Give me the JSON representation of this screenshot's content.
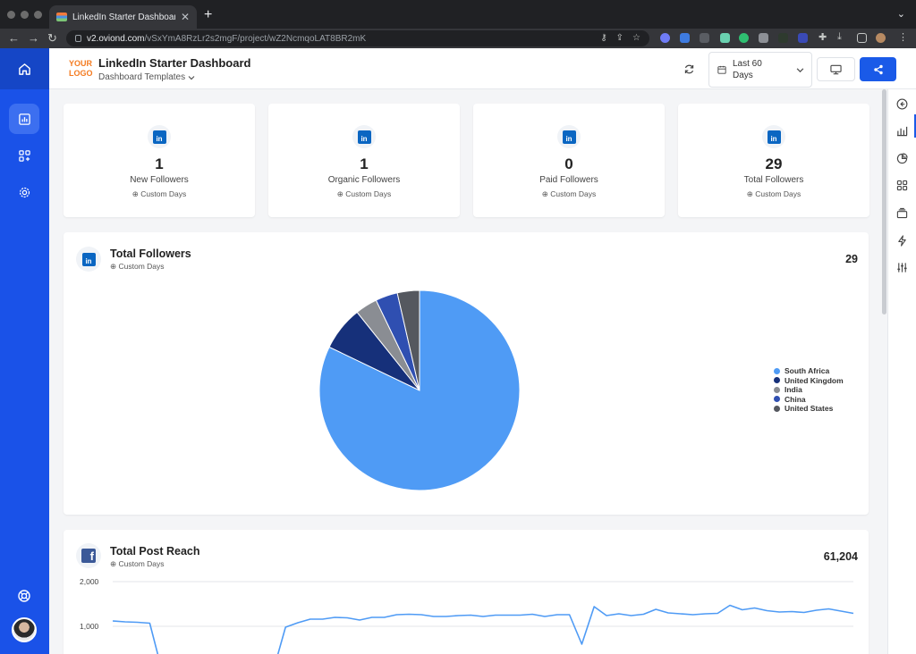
{
  "browser": {
    "tab_title": "LinkedIn Starter Dashboard",
    "url_host": "v2.oviond.com",
    "url_path": "/vSxYmA8RzLr2s2mgF/project/wZ2NcmqoLAT8BR2mK"
  },
  "header": {
    "logo_line1": "YOUR",
    "logo_line2": "LOGO",
    "title": "LinkedIn Starter Dashboard",
    "templates_label": "Dashboard Templates",
    "date_range": "Last 60 Days"
  },
  "kpis": [
    {
      "value": "1",
      "label": "New Followers",
      "sub": "Custom Days"
    },
    {
      "value": "1",
      "label": "Organic Followers",
      "sub": "Custom Days"
    },
    {
      "value": "0",
      "label": "Paid Followers",
      "sub": "Custom Days"
    },
    {
      "value": "29",
      "label": "Total Followers",
      "sub": "Custom Days"
    }
  ],
  "total_followers": {
    "title": "Total Followers",
    "sub": "Custom Days",
    "total": "29"
  },
  "total_post_reach": {
    "title": "Total Post Reach",
    "sub": "Custom Days",
    "total": "61,204"
  },
  "chart_data": [
    {
      "type": "pie",
      "title": "Total Followers",
      "categories": [
        "South Africa",
        "United Kingdom",
        "India",
        "China",
        "United States"
      ],
      "values": [
        23,
        2,
        1,
        1,
        1
      ],
      "colors": [
        "#4f9bf5",
        "#16307a",
        "#8a8d93",
        "#2f4fb1",
        "#55585f"
      ],
      "legend": "right"
    },
    {
      "type": "line",
      "title": "Total Post Reach",
      "ylim": [
        0,
        2000
      ],
      "yticks": [
        "2,000",
        "1,000"
      ],
      "grid": true,
      "values": [
        1120,
        1100,
        1090,
        1070,
        0,
        0,
        0,
        0,
        0,
        0,
        0,
        0,
        0,
        0,
        980,
        1080,
        1160,
        1160,
        1200,
        1190,
        1140,
        1200,
        1200,
        1260,
        1270,
        1260,
        1220,
        1220,
        1240,
        1250,
        1220,
        1250,
        1250,
        1250,
        1270,
        1220,
        1260,
        1260,
        600,
        1440,
        1240,
        1280,
        1240,
        1270,
        1380,
        1300,
        1280,
        1260,
        1280,
        1290,
        1470,
        1370,
        1410,
        1350,
        1320,
        1330,
        1310,
        1360,
        1390,
        1340,
        1290
      ],
      "color": "#4f9bf5"
    }
  ]
}
